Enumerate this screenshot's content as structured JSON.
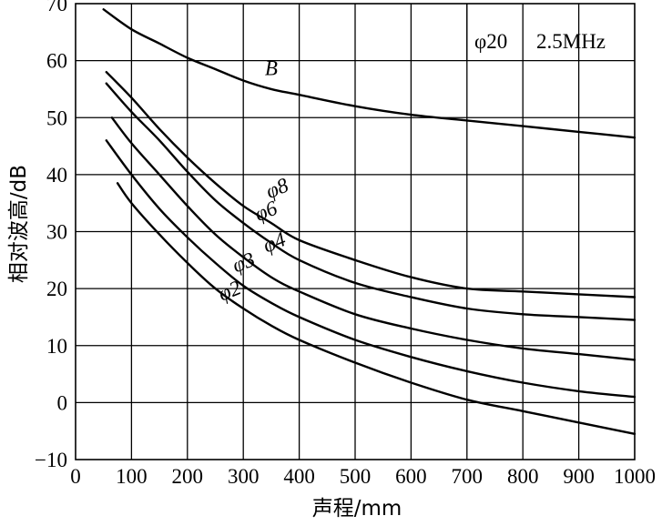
{
  "chart_data": {
    "type": "line",
    "title": "",
    "xlabel": "声程/mm",
    "ylabel": "相对波高/dB",
    "xlim": [
      0,
      1000
    ],
    "ylim": [
      -10,
      70
    ],
    "grid": true,
    "x_ticks": [
      "0",
      "100",
      "200",
      "300",
      "400",
      "500",
      "600",
      "700",
      "800",
      "900",
      "1000"
    ],
    "y_ticks": [
      "70",
      "60",
      "50",
      "40",
      "30",
      "20",
      "10",
      "0",
      "−10"
    ],
    "legend_text": [
      "φ20",
      "2.5MHz"
    ],
    "series": [
      {
        "name": "B",
        "x": [
          50,
          100,
          150,
          200,
          250,
          300,
          350,
          400,
          500,
          600,
          700,
          800,
          900,
          1000
        ],
        "y": [
          69,
          65.5,
          63,
          60.5,
          58.5,
          56.5,
          55,
          54,
          52,
          50.5,
          49.5,
          48.5,
          47.5,
          46.5
        ]
      },
      {
        "name": "φ8",
        "x": [
          55,
          100,
          150,
          200,
          250,
          300,
          350,
          400,
          500,
          600,
          700,
          800,
          900,
          1000
        ],
        "y": [
          58,
          53.5,
          48,
          43,
          38.5,
          34.5,
          31.5,
          28.5,
          25,
          22,
          20,
          19.5,
          19,
          18.5
        ]
      },
      {
        "name": "φ6",
        "x": [
          55,
          100,
          150,
          200,
          250,
          300,
          350,
          400,
          500,
          600,
          700,
          800,
          900,
          1000
        ],
        "y": [
          56,
          51,
          46,
          40.5,
          35.5,
          31.5,
          28,
          25,
          21,
          18.5,
          16.5,
          15.5,
          15,
          14.5
        ]
      },
      {
        "name": "φ4",
        "x": [
          65,
          100,
          150,
          200,
          250,
          300,
          350,
          400,
          500,
          600,
          700,
          800,
          900,
          1000
        ],
        "y": [
          50,
          45.5,
          40,
          34.5,
          29.5,
          25.5,
          22,
          19.5,
          15.5,
          13,
          11,
          9.5,
          8.5,
          7.5
        ]
      },
      {
        "name": "φ3",
        "x": [
          55,
          100,
          150,
          200,
          250,
          300,
          350,
          400,
          500,
          600,
          700,
          800,
          900,
          1000
        ],
        "y": [
          46,
          40,
          34,
          29,
          24.5,
          20.5,
          17.5,
          15,
          11,
          8,
          5.5,
          3.5,
          2,
          1
        ]
      },
      {
        "name": "φ2",
        "x": [
          75,
          100,
          150,
          200,
          250,
          300,
          350,
          400,
          500,
          600,
          700,
          800,
          900,
          1000
        ],
        "y": [
          38.5,
          35,
          29.5,
          24.5,
          20,
          16.5,
          13.5,
          11,
          7,
          3.5,
          0.5,
          -1.5,
          -3.5,
          -5.5
        ]
      }
    ],
    "curve_labels": [
      {
        "text": "B",
        "x": 350,
        "y": 57.5
      },
      {
        "text": "φ8",
        "x": 365,
        "y": 36.5
      },
      {
        "text": "φ6",
        "x": 345,
        "y": 32.5
      },
      {
        "text": "φ4",
        "x": 360,
        "y": 27
      },
      {
        "text": "φ3",
        "x": 305,
        "y": 23.5
      },
      {
        "text": "φ2",
        "x": 280,
        "y": 18.5
      }
    ]
  }
}
